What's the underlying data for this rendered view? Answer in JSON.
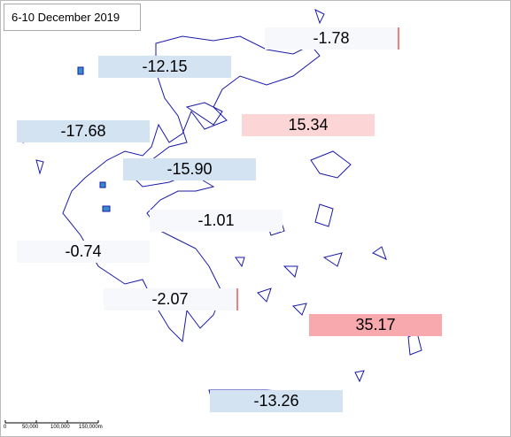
{
  "title": "6-10 December 2019",
  "regions": [
    {
      "label": "-1.78"
    },
    {
      "label": "-12.15"
    },
    {
      "label": "15.34"
    },
    {
      "label": "-17.68"
    },
    {
      "label": "-15.90"
    },
    {
      "label": "-1.01"
    },
    {
      "label": "-0.74"
    },
    {
      "label": "-2.07"
    },
    {
      "label": "35.17"
    },
    {
      "label": "-13.26"
    }
  ],
  "scale_bar": [
    "0",
    "50,000",
    "100,000",
    "150,000m"
  ]
}
